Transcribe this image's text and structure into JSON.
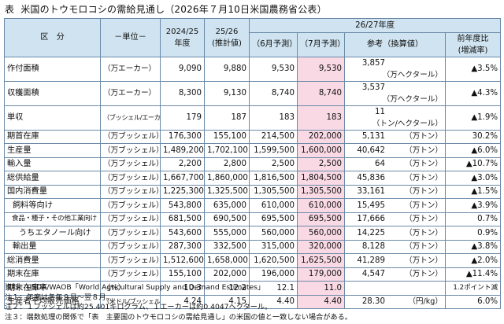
{
  "title": {
    "label": "表",
    "text": "米国のトウモロコシの需給見通し（2026年７月10日米国農務省公表）"
  },
  "header": {
    "category": "区　分",
    "unit": "－単位－",
    "y1": "2024/25\n年度",
    "y2": "25/26\n(推計値)",
    "group": "26/27年度",
    "june": "（6月予測）",
    "july": "（7月予測）",
    "conv": "参考（換算値）",
    "change": "前年度比\n(増減率)"
  },
  "rows": [
    {
      "item": "作付面積",
      "unit": "（万エーカー）",
      "y1": "9,090",
      "y2": "9,880",
      "june": "9,530",
      "july": "9,530",
      "conv_val": "3,857",
      "conv_unit": "（万ヘクタール）",
      "change": "▲3.5%"
    },
    {
      "item": "収穫面積",
      "unit": "（万エーカー）",
      "y1": "8,300",
      "y2": "9,130",
      "june": "8,740",
      "july": "8,740",
      "conv_val": "3,537",
      "conv_unit": "（万ヘクタール）",
      "change": "▲4.3%"
    },
    {
      "item": "単収",
      "unit": "（ブッシェル/エーカー）",
      "y1": "179",
      "y2": "187",
      "june": "183",
      "july": "183",
      "conv_val": "11",
      "conv_unit": "（トン/ヘクタール）",
      "change": "▲1.9%"
    },
    {
      "item": "期首在庫",
      "unit": "（万ブッシェル）",
      "y1": "176,300",
      "y2": "155,100",
      "june": "214,500",
      "july": "202,000",
      "conv_val": "5,131",
      "conv_unit": "（万トン）",
      "change": "30.2%"
    },
    {
      "item": "生産量",
      "unit": "（万ブッシェル）",
      "y1": "1,489,200",
      "y2": "1,702,100",
      "june": "1,599,500",
      "july": "1,600,000",
      "conv_val": "40,642",
      "conv_unit": "（万トン）",
      "change": "▲6.0%"
    },
    {
      "item": "輸入量",
      "unit": "（万ブッシェル）",
      "y1": "2,200",
      "y2": "2,800",
      "june": "2,500",
      "july": "2,500",
      "conv_val": "64",
      "conv_unit": "（万トン）",
      "change": "▲10.7%"
    },
    {
      "item": "総供給量",
      "unit": "（万ブッシェル）",
      "y1": "1,667,700",
      "y2": "1,860,000",
      "june": "1,816,500",
      "july": "1,804,500",
      "conv_val": "45,836",
      "conv_unit": "（万トン）",
      "change": "▲3.0%"
    },
    {
      "item": "国内消費量",
      "unit": "（万ブッシェル）",
      "y1": "1,225,300",
      "y2": "1,325,500",
      "june": "1,305,500",
      "july": "1,305,500",
      "conv_val": "33,161",
      "conv_unit": "（万トン）",
      "change": "▲1.5%"
    },
    {
      "item": "飼料等向け",
      "unit": "（万ブッシェル）",
      "y1": "543,800",
      "y2": "635,000",
      "june": "610,000",
      "july": "610,000",
      "conv_val": "15,495",
      "conv_unit": "（万トン）",
      "change": "▲3.9%"
    },
    {
      "item": "食品・種子・その他工業向け",
      "unit": "（万ブッシェル）",
      "y1": "681,500",
      "y2": "690,500",
      "june": "695,500",
      "july": "695,500",
      "conv_val": "17,666",
      "conv_unit": "（万トン）",
      "change": "0.7%"
    },
    {
      "item": "うちエタノール向け",
      "unit": "（万ブッシェル）",
      "y1": "543,600",
      "y2": "555,000",
      "june": "560,000",
      "july": "560,000",
      "conv_val": "14,225",
      "conv_unit": "（万トン）",
      "change": "0.9%"
    },
    {
      "item": "輸出量",
      "unit": "（万ブッシェル）",
      "y1": "287,300",
      "y2": "332,500",
      "june": "315,000",
      "july": "320,000",
      "conv_val": "8,128",
      "conv_unit": "（万トン）",
      "change": "▲3.8%"
    },
    {
      "item": "総消費量",
      "unit": "（万ブッシェル）",
      "y1": "1,512,600",
      "y2": "1,658,000",
      "june": "1,620,500",
      "july": "1,625,500",
      "conv_val": "41,289",
      "conv_unit": "（万トン）",
      "change": "▲2.0%"
    },
    {
      "item": "期末在庫",
      "unit": "（万ブッシェル）",
      "y1": "155,100",
      "y2": "202,000",
      "june": "196,000",
      "july": "179,000",
      "conv_val": "4,547",
      "conv_unit": "（万トン）",
      "change": "▲11.4%"
    },
    {
      "item": "期末在庫率",
      "unit": "（%）",
      "y1": "10.3",
      "y2": "12.2",
      "june": "12.1",
      "july": "11.0",
      "conv_val": "",
      "conv_unit": "",
      "change": "1.2ポイント減"
    },
    {
      "item": "生産者平均販売価格",
      "unit": "（米ドル/ブッシェル）",
      "y1": "4.24",
      "y2": "4.15",
      "june": "4.40",
      "july": "4.40",
      "conv_val": "28.30",
      "conv_unit": "（円/kg）",
      "change": "6.0%"
    }
  ],
  "notes": [
    "資料：USDA/WAOB「World Agricultural Supply and Demand Estimates」",
    "注１：年度は各年９月～翌８月。",
    "注２：１ブッシェルは約25.401キログラム、１エーカーは約0.4047ヘクタール。",
    "注３：端数処理の関係で「表　主要国のトウモロコシの需給見通し」の米国の値と一致しない場合がある。"
  ],
  "colors": {
    "header_bg": "#cfe3f0",
    "highlight": "#f9d9e4",
    "border": "#6b8aa8"
  }
}
